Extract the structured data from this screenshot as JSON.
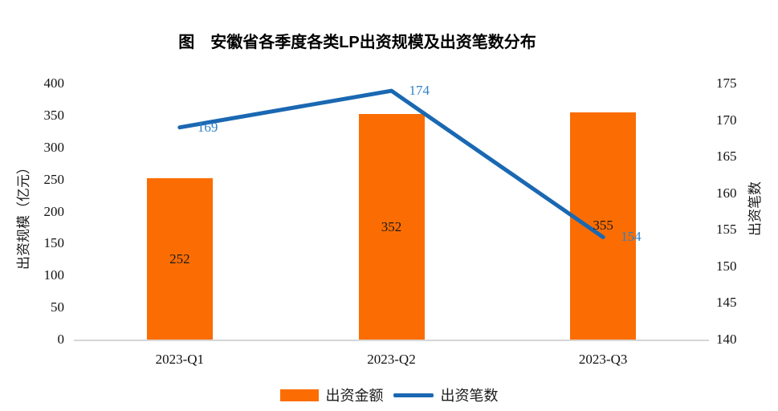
{
  "chart": {
    "title": "图　安徽省各季度各类LP出资规模及出资笔数分布"
  },
  "chart_data": {
    "type": "combo",
    "title": "图　安徽省各季度各类LP出资规模及出资笔数分布",
    "categories": [
      "2023-Q1",
      "2023-Q2",
      "2023-Q3"
    ],
    "series": [
      {
        "name": "出资金额",
        "type": "bar",
        "axis": "left",
        "values": [
          252,
          352,
          355
        ],
        "color": "#fb6d02",
        "label_color": "#1a1a1a"
      },
      {
        "name": "出资笔数",
        "type": "line",
        "axis": "right",
        "values": [
          169,
          174,
          154
        ],
        "color": "#1a68b2",
        "label_color": "#3182c8"
      }
    ],
    "left_axis": {
      "title": "出资规模（亿元）",
      "min": 0,
      "max": 400,
      "step": 50
    },
    "right_axis": {
      "title": "出资笔数",
      "min": 140,
      "max": 175,
      "step": 5
    },
    "grid": false,
    "legend_position": "bottom",
    "axis_line_color": "#d6d6d6"
  }
}
